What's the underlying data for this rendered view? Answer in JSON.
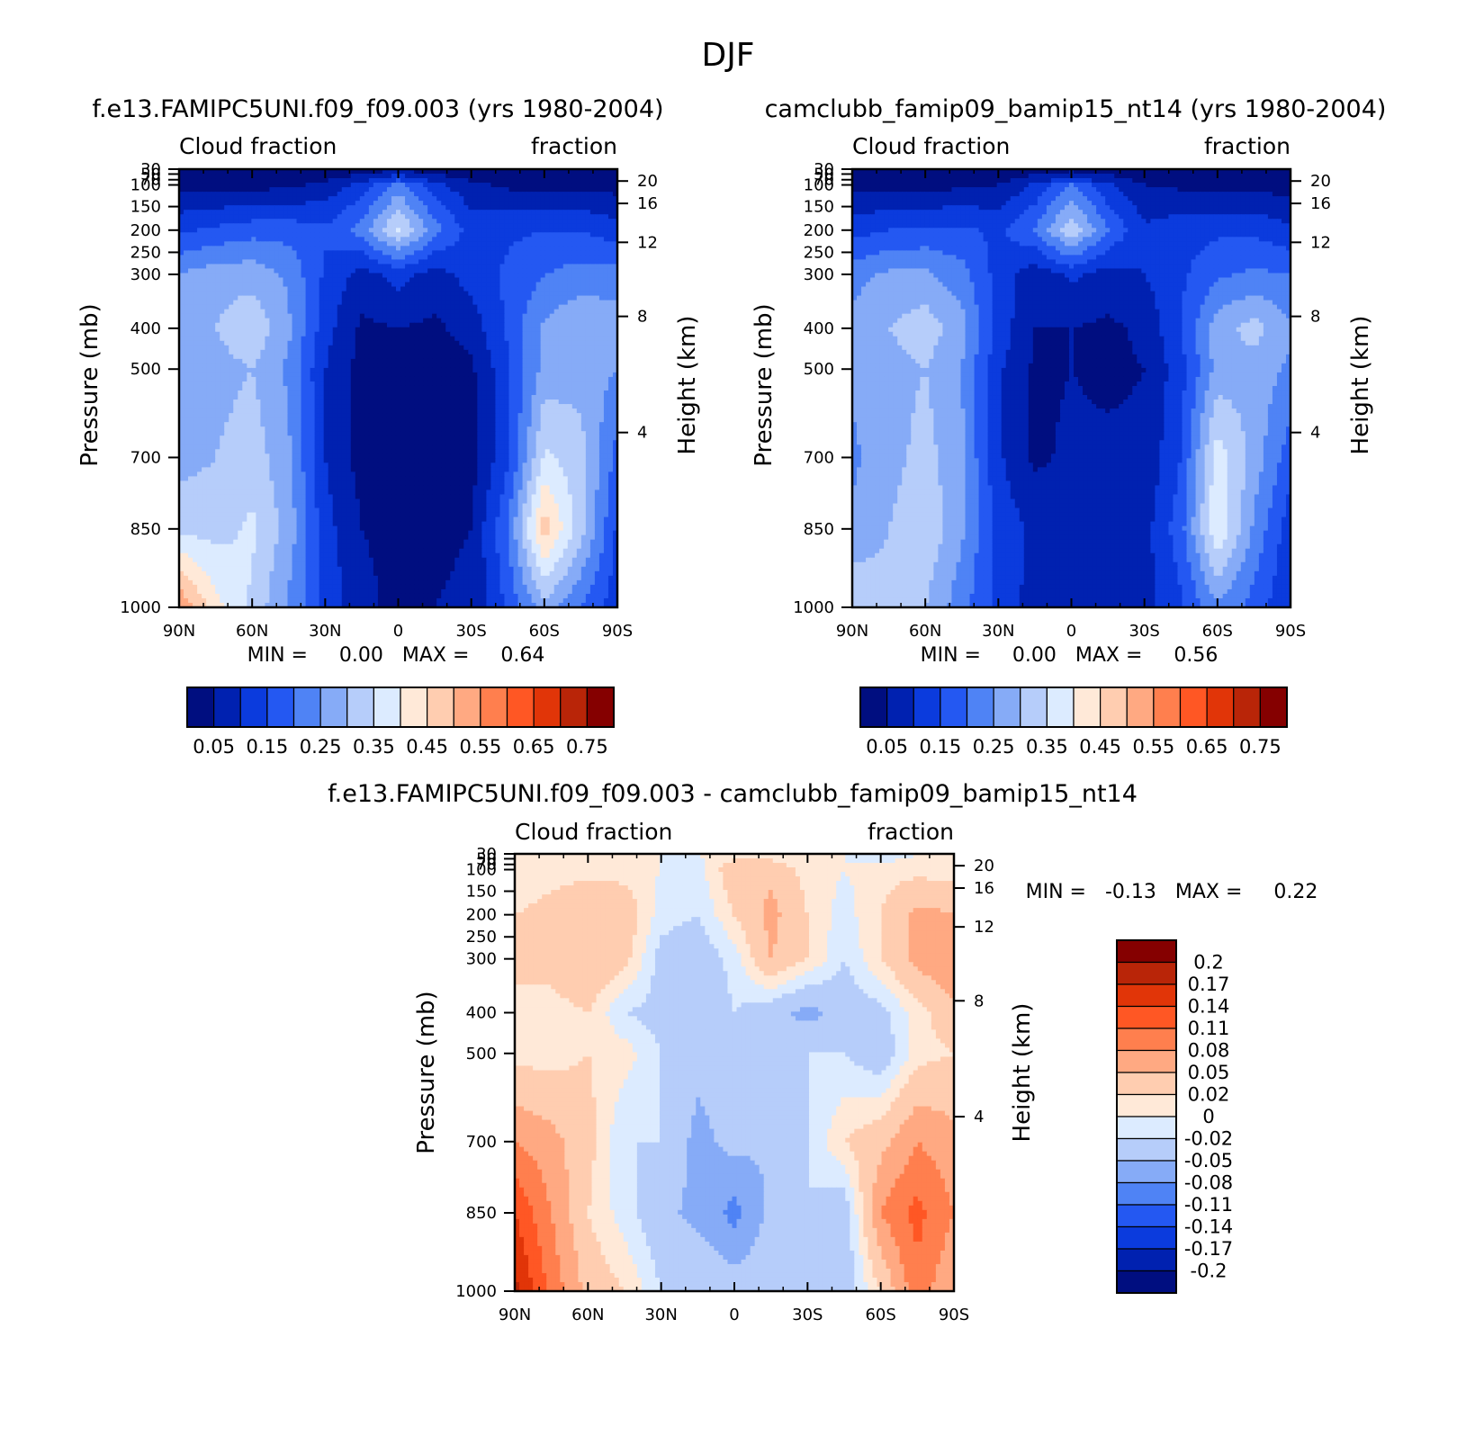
{
  "figure": {
    "title": "DJF",
    "panels": [
      {
        "id": "model-a",
        "title": "f.e13.FAMIPC5UNI.f09_f09.003 (yrs 1980-2004)",
        "left_label": "Cloud fraction",
        "right_label": "fraction",
        "ylabel": "Pressure (mb)",
        "ylabel_right": "Height (km)",
        "stats_text": "MIN =     0.00   MAX =     0.64"
      },
      {
        "id": "model-b",
        "title": "camclubb_famip09_bamip15_nt14 (yrs 1980-2004)",
        "left_label": "Cloud fraction",
        "right_label": "fraction",
        "ylabel": "Pressure (mb)",
        "ylabel_right": "Height (km)",
        "stats_text": "MIN =     0.00   MAX =     0.56"
      },
      {
        "id": "difference",
        "title": "f.e13.FAMIPC5UNI.f09_f09.003 - camclubb_famip09_bamip15_nt14",
        "left_label": "Cloud fraction",
        "right_label": "fraction",
        "ylabel": "Pressure (mb)",
        "ylabel_right": "Height (km)",
        "stats_text": "MIN =   -0.13   MAX =     0.22"
      }
    ]
  },
  "chart_data": [
    {
      "type": "heatmap",
      "title": "f.e13.FAMIPC5UNI.f09_f09.003 (yrs 1980-2004)",
      "xlabel": "",
      "ylabel": "Pressure (mb)",
      "ylabel_right": "Height (km)",
      "x_ticks": [
        "90N",
        "60N",
        "30N",
        "0",
        "30S",
        "60S",
        "90S"
      ],
      "y_ticks": [
        "30",
        "50",
        "70",
        "100",
        "150",
        "200",
        "250",
        "300",
        "400",
        "500",
        "700",
        "850",
        "1000"
      ],
      "y_ticks_right": [
        "20",
        "16",
        "12",
        "8",
        "4"
      ],
      "min": 0.0,
      "max": 0.64,
      "levels": [
        "0.05",
        "0.15",
        "0.25",
        "0.35",
        "0.45",
        "0.55",
        "0.65",
        "0.75"
      ],
      "latitudes": [
        -90,
        -75,
        -60,
        -45,
        -30,
        -15,
        0,
        15,
        30,
        45,
        60,
        75,
        90
      ],
      "pressures": [
        30,
        100,
        200,
        300,
        400,
        500,
        700,
        850,
        1000
      ],
      "values": [
        [
          0.02,
          0.02,
          0.02,
          0.02,
          0.02,
          0.02,
          0.04,
          0.02,
          0.02,
          0.02,
          0.02,
          0.02,
          0.02
        ],
        [
          0.03,
          0.03,
          0.03,
          0.04,
          0.06,
          0.12,
          0.22,
          0.12,
          0.06,
          0.04,
          0.03,
          0.03,
          0.03
        ],
        [
          0.12,
          0.15,
          0.15,
          0.14,
          0.13,
          0.22,
          0.36,
          0.22,
          0.16,
          0.18,
          0.18,
          0.16,
          0.14
        ],
        [
          0.22,
          0.22,
          0.2,
          0.16,
          0.12,
          0.08,
          0.12,
          0.08,
          0.14,
          0.24,
          0.28,
          0.28,
          0.25
        ],
        [
          0.28,
          0.3,
          0.26,
          0.16,
          0.07,
          0.04,
          0.05,
          0.04,
          0.12,
          0.26,
          0.34,
          0.3,
          0.28
        ],
        [
          0.25,
          0.28,
          0.27,
          0.14,
          0.04,
          0.02,
          0.03,
          0.03,
          0.1,
          0.24,
          0.3,
          0.28,
          0.27
        ],
        [
          0.18,
          0.32,
          0.36,
          0.14,
          0.03,
          0.02,
          0.03,
          0.03,
          0.1,
          0.26,
          0.33,
          0.3,
          0.28
        ],
        [
          0.14,
          0.32,
          0.48,
          0.2,
          0.05,
          0.04,
          0.04,
          0.05,
          0.12,
          0.28,
          0.36,
          0.33,
          0.34
        ],
        [
          0.12,
          0.2,
          0.28,
          0.16,
          0.06,
          0.05,
          0.04,
          0.06,
          0.14,
          0.24,
          0.34,
          0.42,
          0.55
        ]
      ]
    },
    {
      "type": "heatmap",
      "title": "camclubb_famip09_bamip15_nt14 (yrs 1980-2004)",
      "xlabel": "",
      "ylabel": "Pressure (mb)",
      "ylabel_right": "Height (km)",
      "x_ticks": [
        "90N",
        "60N",
        "30N",
        "0",
        "30S",
        "60S",
        "90S"
      ],
      "y_ticks": [
        "30",
        "50",
        "70",
        "100",
        "150",
        "200",
        "250",
        "300",
        "400",
        "500",
        "700",
        "850",
        "1000"
      ],
      "y_ticks_right": [
        "20",
        "16",
        "12",
        "8",
        "4"
      ],
      "min": 0.0,
      "max": 0.56,
      "levels": [
        "0.05",
        "0.15",
        "0.25",
        "0.35",
        "0.45",
        "0.55",
        "0.65",
        "0.75"
      ],
      "latitudes": [
        -90,
        -75,
        -60,
        -45,
        -30,
        -15,
        0,
        15,
        30,
        45,
        60,
        75,
        90
      ],
      "pressures": [
        30,
        100,
        200,
        300,
        400,
        500,
        700,
        850,
        1000
      ],
      "values": [
        [
          0.02,
          0.02,
          0.02,
          0.02,
          0.02,
          0.02,
          0.03,
          0.02,
          0.02,
          0.02,
          0.02,
          0.02,
          0.02
        ],
        [
          0.03,
          0.03,
          0.03,
          0.04,
          0.05,
          0.11,
          0.2,
          0.11,
          0.05,
          0.04,
          0.03,
          0.03,
          0.03
        ],
        [
          0.11,
          0.14,
          0.14,
          0.13,
          0.11,
          0.2,
          0.34,
          0.2,
          0.14,
          0.16,
          0.16,
          0.15,
          0.13
        ],
        [
          0.2,
          0.21,
          0.19,
          0.14,
          0.1,
          0.08,
          0.11,
          0.07,
          0.13,
          0.22,
          0.26,
          0.26,
          0.23
        ],
        [
          0.26,
          0.32,
          0.28,
          0.15,
          0.06,
          0.04,
          0.05,
          0.05,
          0.13,
          0.27,
          0.33,
          0.3,
          0.27
        ],
        [
          0.24,
          0.28,
          0.27,
          0.13,
          0.05,
          0.04,
          0.05,
          0.04,
          0.11,
          0.25,
          0.3,
          0.28,
          0.26
        ],
        [
          0.17,
          0.28,
          0.38,
          0.15,
          0.06,
          0.06,
          0.06,
          0.04,
          0.11,
          0.26,
          0.32,
          0.28,
          0.24
        ],
        [
          0.12,
          0.24,
          0.4,
          0.18,
          0.08,
          0.09,
          0.08,
          0.09,
          0.13,
          0.26,
          0.34,
          0.3,
          0.26
        ],
        [
          0.1,
          0.18,
          0.24,
          0.14,
          0.08,
          0.08,
          0.07,
          0.08,
          0.13,
          0.22,
          0.3,
          0.32,
          0.35
        ]
      ]
    },
    {
      "type": "heatmap",
      "title": "f.e13.FAMIPC5UNI.f09_f09.003 - camclubb_famip09_bamip15_nt14",
      "xlabel": "",
      "ylabel": "Pressure (mb)",
      "ylabel_right": "Height (km)",
      "x_ticks": [
        "90N",
        "60N",
        "30N",
        "0",
        "30S",
        "60S",
        "90S"
      ],
      "y_ticks": [
        "30",
        "50",
        "70",
        "100",
        "150",
        "200",
        "250",
        "300",
        "400",
        "500",
        "700",
        "850",
        "1000"
      ],
      "y_ticks_right": [
        "20",
        "16",
        "12",
        "8",
        "4"
      ],
      "min": -0.13,
      "max": 0.22,
      "levels": [
        "-0.2",
        "-0.17",
        "-0.14",
        "-0.11",
        "-0.08",
        "-0.05",
        "-0.02",
        "0",
        "0.02",
        "0.05",
        "0.08",
        "0.11",
        "0.14",
        "0.17",
        "0.2"
      ],
      "latitudes": [
        -90,
        -75,
        -60,
        -45,
        -30,
        -15,
        0,
        15,
        30,
        45,
        60,
        75,
        90
      ],
      "pressures": [
        30,
        100,
        200,
        300,
        400,
        500,
        700,
        850,
        1000
      ],
      "values": [
        [
          0.0,
          0.0,
          -0.01,
          0.0,
          0.0,
          0.01,
          0.01,
          0.0,
          0.0,
          0.0,
          0.0,
          0.0,
          0.0
        ],
        [
          0.01,
          0.01,
          0.01,
          0.0,
          0.01,
          0.04,
          0.04,
          -0.01,
          0.0,
          0.01,
          0.01,
          0.01,
          0.0
        ],
        [
          0.05,
          0.06,
          0.02,
          -0.01,
          0.02,
          0.06,
          0.02,
          -0.02,
          -0.01,
          0.04,
          0.05,
          0.03,
          0.02
        ],
        [
          0.08,
          0.06,
          0.02,
          -0.02,
          0.02,
          0.05,
          -0.01,
          -0.04,
          -0.03,
          0.03,
          0.05,
          0.03,
          0.02
        ],
        [
          0.04,
          0.01,
          -0.03,
          -0.04,
          -0.06,
          -0.04,
          -0.02,
          -0.05,
          -0.03,
          -0.02,
          0.02,
          0.01,
          0.02
        ],
        [
          0.02,
          0.01,
          -0.04,
          -0.02,
          -0.02,
          -0.04,
          -0.03,
          -0.04,
          -0.02,
          0.01,
          0.02,
          0.01,
          0.01
        ],
        [
          0.06,
          0.08,
          0.04,
          0.02,
          -0.02,
          -0.05,
          -0.04,
          -0.06,
          -0.02,
          -0.02,
          0.03,
          0.06,
          0.08
        ],
        [
          0.08,
          0.12,
          0.08,
          -0.04,
          -0.02,
          -0.04,
          -0.09,
          -0.06,
          -0.04,
          -0.01,
          0.02,
          0.08,
          0.14
        ],
        [
          0.05,
          0.1,
          0.02,
          -0.04,
          -0.02,
          -0.03,
          -0.03,
          -0.02,
          -0.02,
          0.02,
          0.04,
          0.1,
          0.18
        ]
      ]
    }
  ],
  "colorbars": {
    "fraction_labels": [
      "0.05",
      "0.15",
      "0.25",
      "0.35",
      "0.45",
      "0.55",
      "0.65",
      "0.75"
    ],
    "fraction_colors": [
      "#000e80",
      "#0021b0",
      "#0b3bdd",
      "#2458f2",
      "#4f83f5",
      "#86abf7",
      "#b6cdfa",
      "#dcebff",
      "#ffe9d8",
      "#ffcdb0",
      "#ffa982",
      "#ff7f4e",
      "#ff5724",
      "#e13508",
      "#b92508",
      "#850000"
    ],
    "difference_labels": [
      "0.2",
      "0.17",
      "0.14",
      "0.11",
      "0.08",
      "0.05",
      "0.02",
      "0",
      "-0.02",
      "-0.05",
      "-0.08",
      "-0.11",
      "-0.14",
      "-0.17",
      "-0.2"
    ],
    "difference_colors": [
      "#850000",
      "#b92508",
      "#e13508",
      "#ff5724",
      "#ff7f4e",
      "#ffa982",
      "#ffcdb0",
      "#ffe9d8",
      "#dcebff",
      "#b6cdfa",
      "#86abf7",
      "#4f83f5",
      "#2458f2",
      "#0b3bdd",
      "#0021b0",
      "#000e80"
    ]
  }
}
